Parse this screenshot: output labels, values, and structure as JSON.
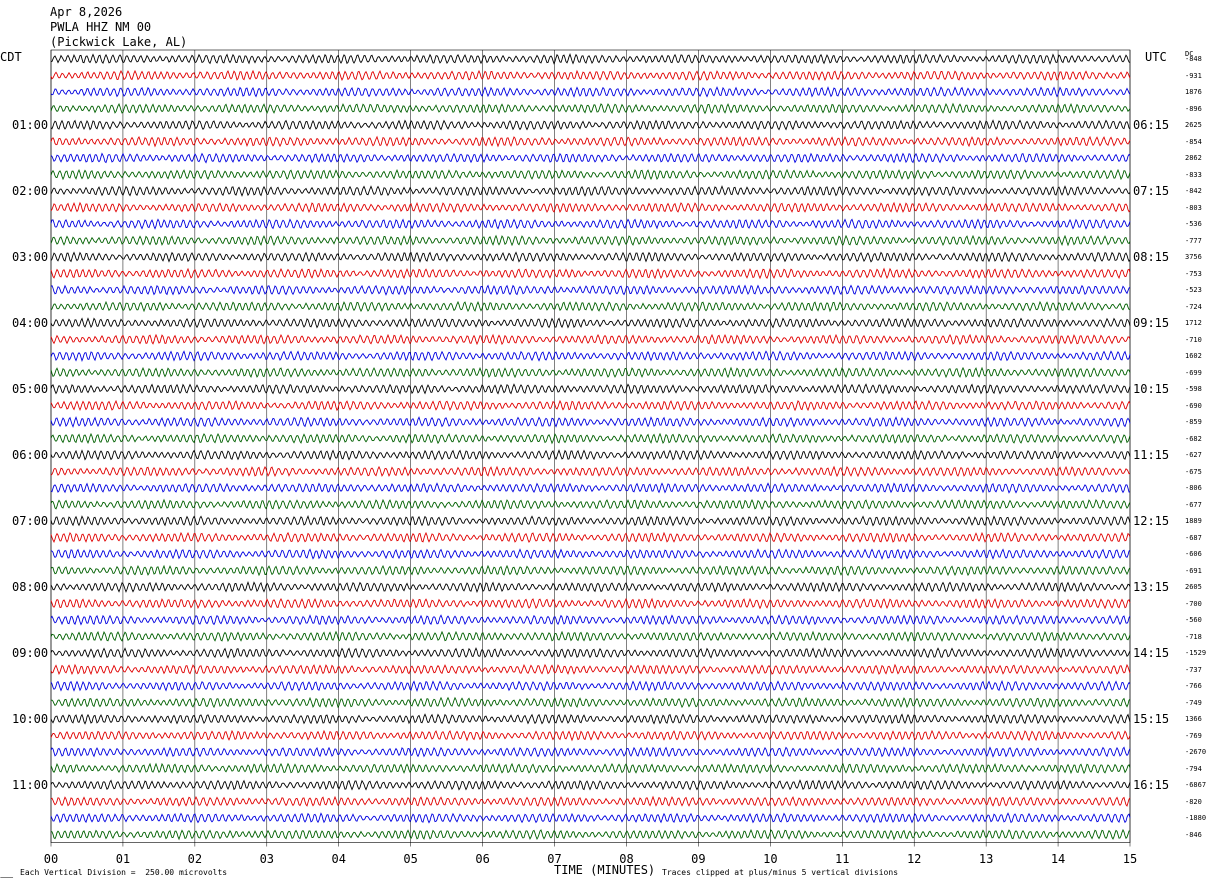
{
  "header": {
    "date": "Apr 8,2026",
    "station": "PWLA HHZ NM 00",
    "location": "(Pickwick Lake, AL)"
  },
  "left_tz": "CDT",
  "right_tz": "UTC",
  "dc_header": "DC",
  "x_axis_title": "TIME (MINUTES)",
  "footer": {
    "scale_note": "Each Vertical Division =  250.00 microvolts",
    "clip_note": "Traces clipped at plus/minus 5 vertical divisions"
  },
  "colors": {
    "trace_cycle": [
      "#000000",
      "#e00000",
      "#0000e0",
      "#006000"
    ],
    "grid": "#000000"
  },
  "chart_data": {
    "type": "line",
    "title": "PWLA HHZ NM 00 (Pickwick Lake, AL) Apr 8,2026",
    "xlabel": "TIME (MINUTES)",
    "xlim": [
      0,
      15
    ],
    "x_ticks": [
      "00",
      "01",
      "02",
      "03",
      "04",
      "05",
      "06",
      "07",
      "08",
      "09",
      "10",
      "11",
      "12",
      "13",
      "14",
      "15"
    ],
    "rows_per_hour": 4,
    "row_count": 48,
    "left_hour_labels": [
      "01:00",
      "02:00",
      "03:00",
      "04:00",
      "05:00",
      "06:00",
      "07:00",
      "08:00",
      "09:00",
      "10:00",
      "11:00"
    ],
    "right_hour_labels": [
      "06:15",
      "07:15",
      "08:15",
      "09:15",
      "10:15",
      "11:15",
      "12:15",
      "13:15",
      "14:15",
      "15:15",
      "16:15"
    ],
    "dc_offsets": [
      "-848",
      "-931",
      "1876",
      "-896",
      "2625",
      "-854",
      "2862",
      "-833",
      "-842",
      "-803",
      "-536",
      "-777",
      "3756",
      "-753",
      "-523",
      "-724",
      "1712",
      "-710",
      "1602",
      "-699",
      "-598",
      "-690",
      "-859",
      "-682",
      "-627",
      "-675",
      "-806",
      "-677",
      "1889",
      "-687",
      "-606",
      "-691",
      "2605",
      "-700",
      "-560",
      "-718",
      "-1529",
      "-737",
      "-766",
      "-749",
      "1366",
      "-769",
      "-2670",
      "-794",
      "-6867",
      "-820",
      "-1880",
      "-846"
    ]
  }
}
